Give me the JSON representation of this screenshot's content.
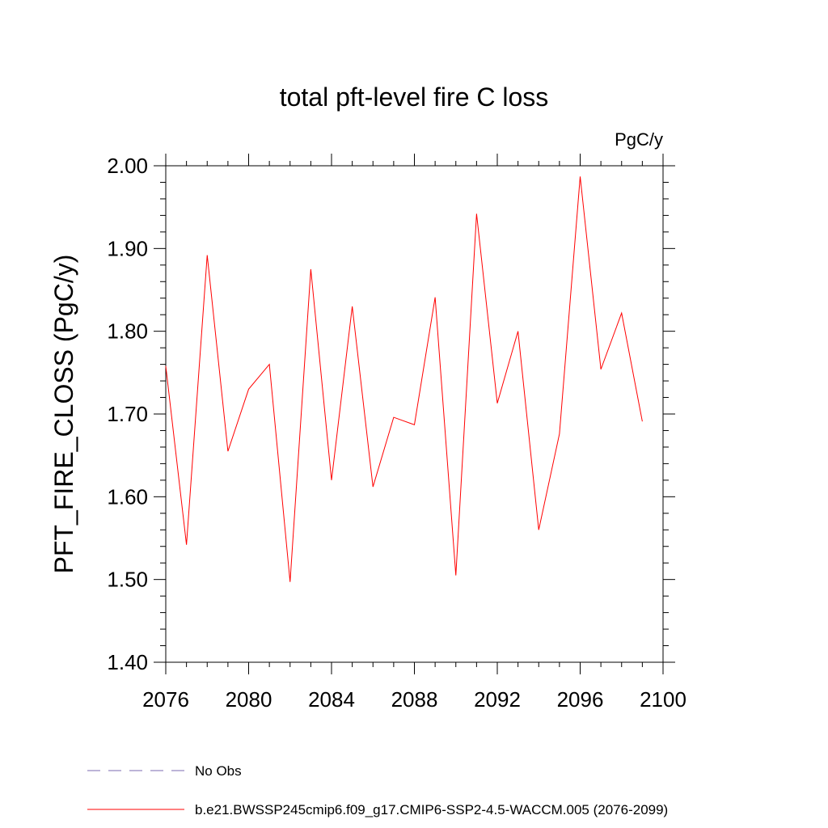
{
  "chart_data": {
    "type": "line",
    "title": "total pft-level fire C loss",
    "units_label": "PgC/y",
    "ylabel": "PFT_FIRE_CLOSS  (PgC/y)",
    "xlabel": "",
    "xlim": [
      2076,
      2100
    ],
    "ylim": [
      1.4,
      2.0
    ],
    "xticks": [
      2076,
      2080,
      2084,
      2088,
      2092,
      2096,
      2100
    ],
    "yticks": [
      1.4,
      1.5,
      1.6,
      1.7,
      1.8,
      1.9,
      2.0
    ],
    "ytick_labels": [
      "1.40",
      "1.50",
      "1.60",
      "1.70",
      "1.80",
      "1.90",
      "2.00"
    ],
    "grid": false,
    "legend_position": "bottom",
    "series": [
      {
        "name": "b.e21.BWSSP245cmip6.f09_g17.CMIP6-SSP2-4.5-WACCM.005 (2076-2099)",
        "color": "#ff0000",
        "style": "solid",
        "x": [
          2076,
          2077,
          2078,
          2079,
          2080,
          2081,
          2082,
          2083,
          2084,
          2085,
          2086,
          2087,
          2088,
          2089,
          2090,
          2091,
          2092,
          2093,
          2094,
          2095,
          2096,
          2097,
          2098,
          2099
        ],
        "values": [
          1.758,
          1.542,
          1.892,
          1.655,
          1.73,
          1.76,
          1.497,
          1.875,
          1.62,
          1.83,
          1.612,
          1.696,
          1.687,
          1.841,
          1.505,
          1.942,
          1.713,
          1.8,
          1.56,
          1.676,
          1.987,
          1.754,
          1.822,
          1.691
        ]
      }
    ],
    "legend": [
      {
        "label": "No Obs",
        "color": "#7b68b0",
        "style": "dashed"
      },
      {
        "label": "b.e21.BWSSP245cmip6.f09_g17.CMIP6-SSP2-4.5-WACCM.005 (2076-2099)",
        "color": "#ff0000",
        "style": "solid"
      }
    ]
  }
}
